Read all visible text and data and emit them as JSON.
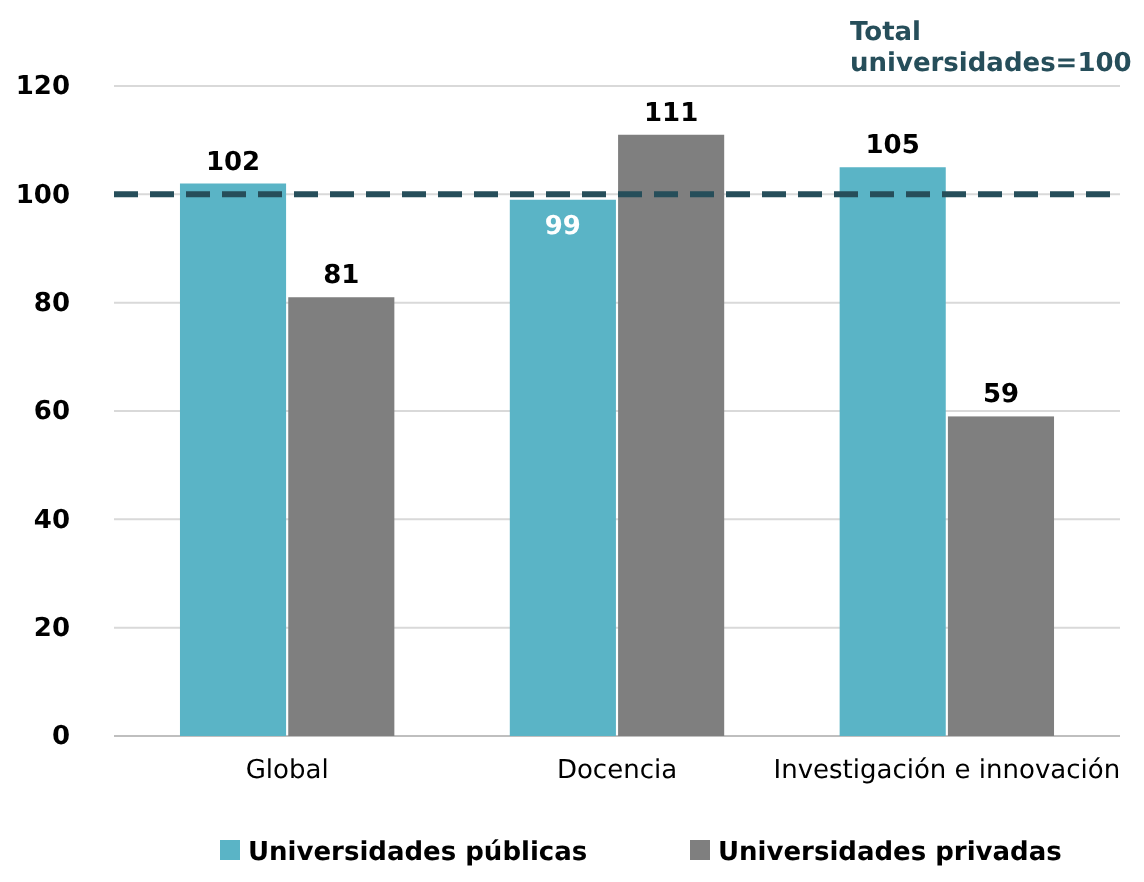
{
  "chart_data": {
    "type": "bar",
    "categories": [
      "Global",
      "Docencia",
      "Investigación e innovación"
    ],
    "series": [
      {
        "name": "Universidades públicas",
        "color": "#5ab4c6",
        "values": [
          102,
          99,
          105
        ]
      },
      {
        "name": "Universidades privadas",
        "color": "#7f7f7f",
        "values": [
          81,
          111,
          59
        ]
      }
    ],
    "ylim": [
      0,
      120
    ],
    "yticks": [
      0,
      20,
      40,
      60,
      80,
      100,
      120
    ],
    "grid": "y",
    "legend": "bottom",
    "data_labels": true,
    "ref_lines": [
      {
        "axis": "y",
        "value": 100,
        "label": "Total universidades=100",
        "color": "#264e5a",
        "line_style": "dashed"
      }
    ]
  }
}
